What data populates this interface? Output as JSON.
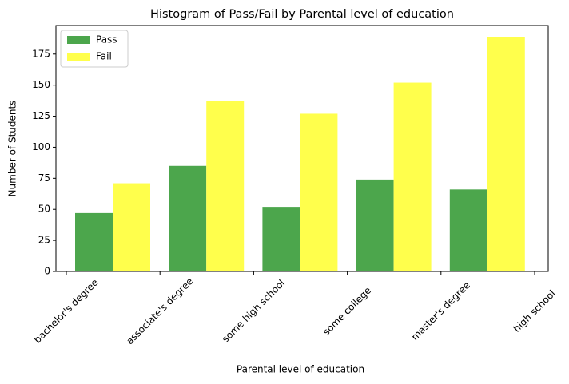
{
  "chart_data": {
    "type": "bar",
    "title": "Histogram of Pass/Fail by Parental level of education",
    "x_label": "Parental level of education",
    "y_label": "Number of Students",
    "categories": [
      "bachelor's degree",
      "associate's degree",
      "some high school",
      "some college",
      "master's degree",
      "high school"
    ],
    "series": [
      {
        "name": "Pass",
        "color": "#4ca64c",
        "values": [
          47,
          85,
          52,
          74,
          66,
          null
        ]
      },
      {
        "name": "Fail",
        "color": "#ffff4c",
        "values": [
          71,
          137,
          127,
          152,
          189,
          null
        ]
      }
    ],
    "ylim": [
      0,
      198
    ],
    "yticks": [
      0,
      25,
      50,
      75,
      100,
      125,
      150,
      175
    ],
    "legend": "upper left"
  }
}
